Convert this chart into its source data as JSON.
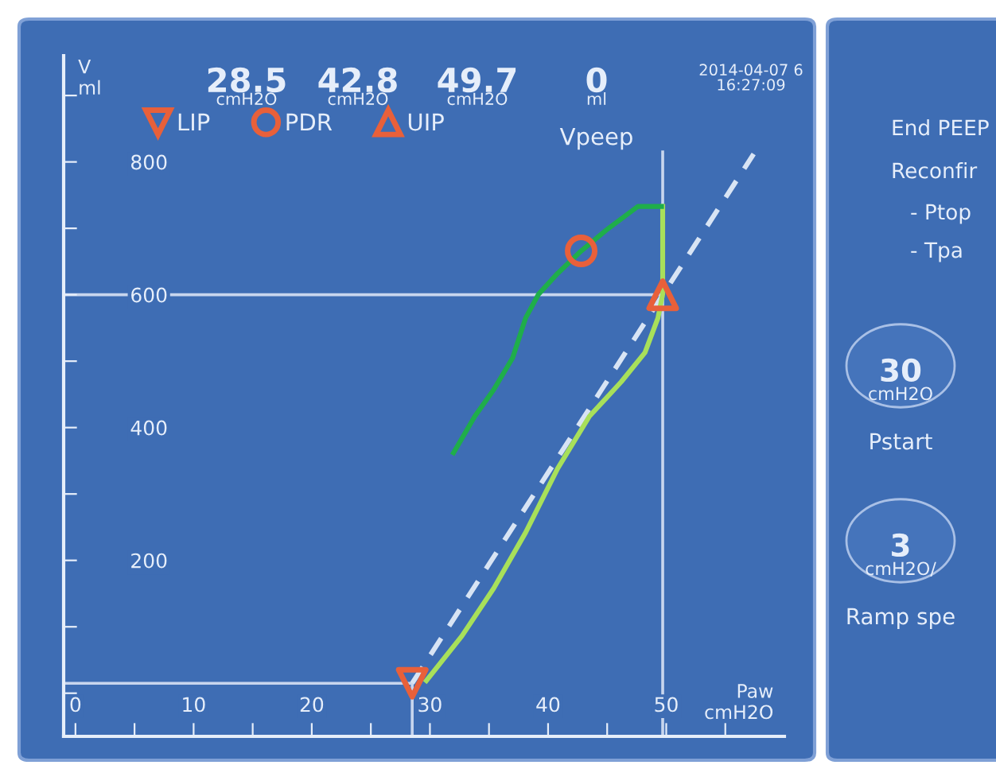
{
  "chart_data": {
    "type": "line",
    "xlabel": "Paw\ncmH2O",
    "ylabel": "V\nml",
    "xlim": [
      -1,
      60
    ],
    "ylim": [
      -65,
      960
    ],
    "xticks": [
      {
        "value": 0,
        "label": "0"
      },
      {
        "value": 5,
        "label": null
      },
      {
        "value": 10,
        "label": "10"
      },
      {
        "value": 15,
        "label": null
      },
      {
        "value": 20,
        "label": "20"
      },
      {
        "value": 25,
        "label": null
      },
      {
        "value": 30,
        "label": "30"
      },
      {
        "value": 35,
        "label": null
      },
      {
        "value": 40,
        "label": "40"
      },
      {
        "value": 45,
        "label": null
      },
      {
        "value": 50,
        "label": "50"
      },
      {
        "value": 55,
        "label": null
      }
    ],
    "yticks": [
      {
        "value": 0,
        "label": null
      },
      {
        "value": 100,
        "label": null
      },
      {
        "value": 200,
        "label": "200"
      },
      {
        "value": 300,
        "label": null
      },
      {
        "value": 400,
        "label": "400"
      },
      {
        "value": 500,
        "label": null
      },
      {
        "value": 600,
        "label": "600"
      },
      {
        "value": 700,
        "label": null
      },
      {
        "value": 800,
        "label": "800"
      },
      {
        "value": 900,
        "label": null
      }
    ],
    "grid": false,
    "legend": "top",
    "series": [
      {
        "color": "#c8d6ee",
        "x": [
          -1,
          28.5
        ],
        "values": [
          15,
          15
        ]
      },
      {
        "color": "#c8d6ee",
        "x": [
          28.5,
          28.5
        ],
        "values": [
          -65,
          15
        ]
      },
      {
        "color": "#c8d6ee",
        "x": [
          -1,
          49.7
        ],
        "values": [
          600,
          600
        ]
      },
      {
        "color": "#c8d6ee",
        "x": [
          49.7,
          49.7
        ],
        "values": [
          -65,
          815
        ]
      },
      {
        "color": "#d8e4f4",
        "line_style": "dashed",
        "x": [
          28.5,
          57.4
        ],
        "values": [
          15,
          812
        ]
      },
      {
        "color": "#a8e05a",
        "x": [
          29.7,
          32.7,
          35.4,
          38.1,
          40.8,
          43.5,
          46.2,
          48.2,
          49.3,
          49.7,
          49.7
        ],
        "values": [
          19,
          86,
          158,
          242,
          338,
          417,
          469,
          513,
          565,
          601,
          733
        ]
      },
      {
        "color": "#1fae4a",
        "x": [
          49.6,
          47.6,
          44.9,
          42.8,
          40.8,
          39.2,
          38.1,
          37.0,
          35.4,
          33.8,
          32.0
        ],
        "values": [
          733,
          733,
          697,
          666,
          632,
          601,
          565,
          505,
          457,
          417,
          362
        ]
      },
      {
        "type": "scatter",
        "name": "LIP",
        "color": "#e8603a",
        "marker": "triangle_down",
        "x": [
          28.5
        ],
        "values": [
          15
        ]
      },
      {
        "type": "scatter",
        "name": "PDR",
        "color": "#e8603a",
        "marker": "circle",
        "x": [
          42.8
        ],
        "values": [
          666
        ]
      },
      {
        "type": "scatter",
        "name": "UIP",
        "color": "#e8603a",
        "marker": "triangle",
        "x": [
          49.7
        ],
        "values": [
          600
        ]
      }
    ],
    "annotations": [
      "28.5",
      "cmH2O",
      "42.8",
      "cmH2O",
      "49.7",
      "cmH2O",
      "0",
      "ml",
      "Vpeep",
      "2014-04-07 6\n16:27:09",
      "End PEEP",
      "Reconfir",
      "- Ptop",
      "- Tpa",
      "30",
      "cmH2O",
      "Pstart",
      "3",
      "cmH2O/",
      "Ramp spe"
    ]
  }
}
